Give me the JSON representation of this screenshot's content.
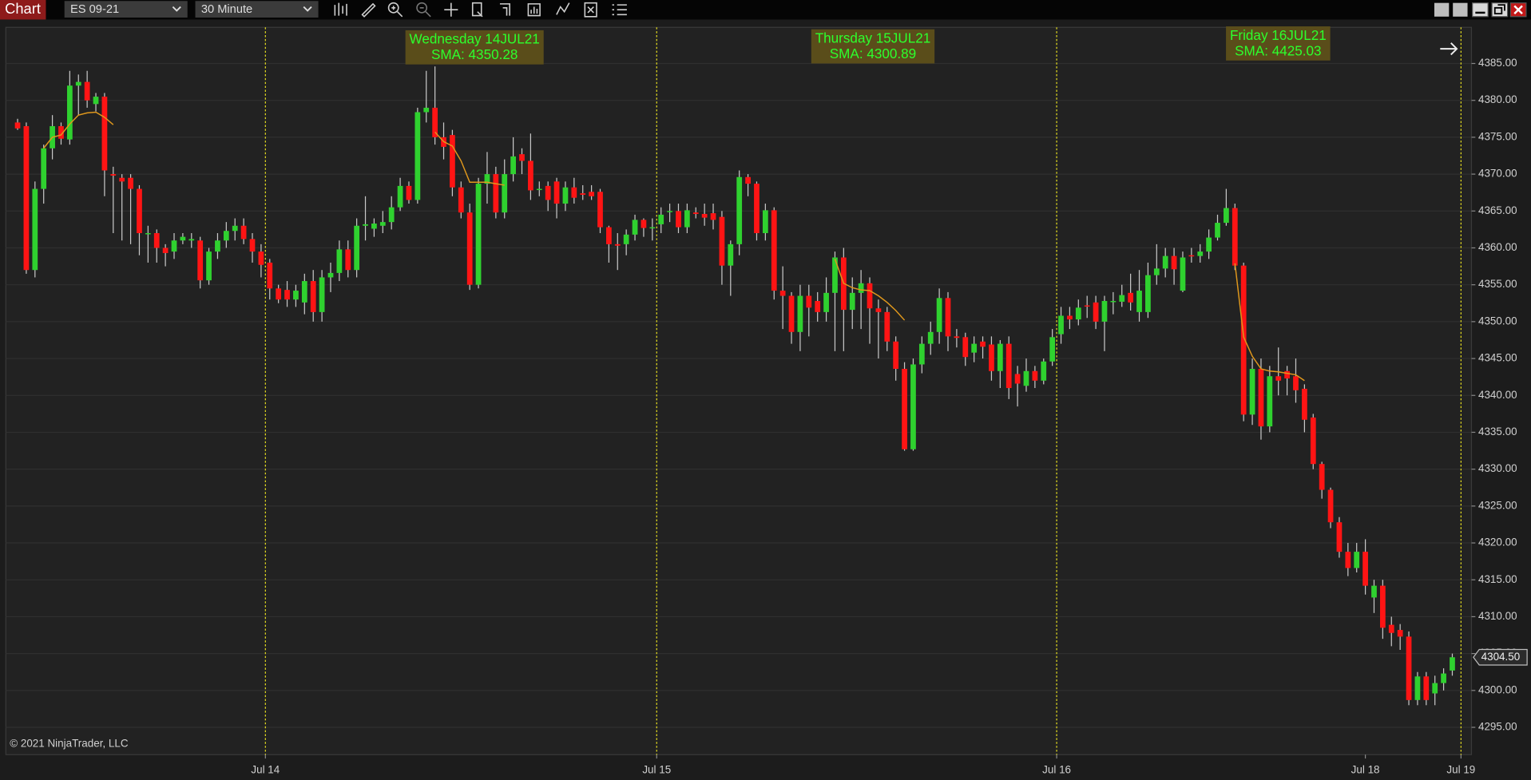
{
  "toolbar": {
    "tab": "Chart",
    "instrument": "ES 09-21",
    "interval": "30 Minute"
  },
  "chart_data": {
    "type": "candlestick",
    "up_color": "#2fd12f",
    "down_color": "#ff1414",
    "wick_color": "#c8c8c8",
    "grid": true,
    "candles": [
      [
        4377,
        4377.5,
        4376,
        4376.2
      ],
      [
        4376.5,
        4377,
        4356.5,
        4357
      ],
      [
        4357,
        4369,
        4356,
        4368
      ],
      [
        4368,
        4374,
        4366,
        4373.5
      ],
      [
        4373.5,
        4378,
        4372,
        4376.5
      ],
      [
        4376.5,
        4377,
        4374,
        4374.8
      ],
      [
        4374.7,
        4384,
        4374,
        4382
      ],
      [
        4382,
        4383.5,
        4378,
        4382.5
      ],
      [
        4382.5,
        4384,
        4379,
        4380
      ],
      [
        4379.5,
        4381,
        4378.5,
        4380.5
      ],
      [
        4380.5,
        4381,
        4367,
        4370.5
      ],
      [
        4370,
        4371,
        4362,
        4369.8
      ],
      [
        4369.5,
        4370,
        4361,
        4369
      ],
      [
        4369.5,
        4370,
        4360.5,
        4368
      ],
      [
        4368,
        4368.5,
        4359,
        4362
      ],
      [
        4362,
        4363,
        4358,
        4362
      ],
      [
        4362,
        4362.5,
        4358,
        4360
      ],
      [
        4360,
        4360.5,
        4357.5,
        4359.3
      ],
      [
        4359.5,
        4362,
        4358.5,
        4361
      ],
      [
        4361,
        4362,
        4360.5,
        4361.5
      ],
      [
        4361,
        4362,
        4360,
        4361.2
      ],
      [
        4361,
        4361.5,
        4354.5,
        4355.6
      ],
      [
        4355.6,
        4360,
        4355,
        4359.5
      ],
      [
        4359.5,
        4362,
        4358.5,
        4361
      ],
      [
        4361,
        4363.5,
        4360,
        4362.3
      ],
      [
        4362.3,
        4364,
        4361,
        4363
      ],
      [
        4363,
        4364,
        4360.5,
        4361.2
      ],
      [
        4361.2,
        4362,
        4358,
        4359.5
      ],
      [
        4359.5,
        4360.5,
        4356,
        4357.7
      ],
      [
        4358,
        4358.5,
        4353,
        4354.5
      ],
      [
        4354.5,
        4355,
        4352.5,
        4353
      ],
      [
        4354.3,
        4355.5,
        4352,
        4353
      ],
      [
        4353,
        4355,
        4352,
        4354.2
      ],
      [
        4352.6,
        4356.5,
        4351,
        4355.5
      ],
      [
        4355.5,
        4357,
        4350,
        4351.3
      ],
      [
        4351.3,
        4357,
        4350,
        4356
      ],
      [
        4356,
        4358,
        4354,
        4356.6
      ],
      [
        4356.6,
        4361,
        4355.5,
        4359.8
      ],
      [
        4359.8,
        4361,
        4356,
        4357
      ],
      [
        4357,
        4364,
        4356,
        4363
      ],
      [
        4363,
        4367,
        4361,
        4363.2
      ],
      [
        4362.6,
        4364,
        4361.5,
        4363.3
      ],
      [
        4363,
        4365,
        4362,
        4363.5
      ],
      [
        4363.5,
        4367,
        4362.5,
        4365.5
      ],
      [
        4365.5,
        4369.5,
        4365,
        4368.4
      ],
      [
        4368.4,
        4369,
        4366,
        4366.5
      ],
      [
        4366.5,
        4379,
        4366,
        4378.4
      ],
      [
        4378.4,
        4384,
        4377,
        4379
      ],
      [
        4379,
        4384.6,
        4374,
        4375
      ],
      [
        4375,
        4377,
        4372,
        4373.7
      ],
      [
        4375.3,
        4376,
        4367,
        4368.2
      ],
      [
        4368.2,
        4369,
        4364,
        4364.8
      ],
      [
        4364.8,
        4366,
        4354.3,
        4355
      ],
      [
        4355,
        4369.5,
        4354.5,
        4368.7
      ],
      [
        4368.7,
        4373,
        4366,
        4370
      ],
      [
        4370,
        4371,
        4364,
        4364.8
      ],
      [
        4364.8,
        4372,
        4364,
        4370
      ],
      [
        4370,
        4375,
        4369,
        4372.4
      ],
      [
        4372.7,
        4373.5,
        4370,
        4371.8
      ],
      [
        4371.8,
        4375.5,
        4366.5,
        4367.8
      ],
      [
        4368,
        4369,
        4367,
        4368
      ],
      [
        4368.4,
        4369,
        4365,
        4366.5
      ],
      [
        4369,
        4369.5,
        4364,
        4366
      ],
      [
        4366,
        4369,
        4365,
        4368.2
      ],
      [
        4368.2,
        4369.5,
        4366,
        4366.8
      ],
      [
        4367.4,
        4368.5,
        4366.5,
        4367.2
      ],
      [
        4367.6,
        4368.5,
        4366.5,
        4367
      ],
      [
        4367.6,
        4368,
        4362,
        4362.8
      ],
      [
        4362.8,
        4363,
        4358,
        4360.5
      ],
      [
        4360.5,
        4362,
        4357,
        4360.3
      ],
      [
        4360.5,
        4362.5,
        4359,
        4361.8
      ],
      [
        4361.8,
        4364.5,
        4361,
        4363.8
      ],
      [
        4363.8,
        4364,
        4361.5,
        4362.7
      ],
      [
        4362.8,
        4364,
        4361,
        4362.8
      ],
      [
        4363.2,
        4365.5,
        4362,
        4364.5
      ],
      [
        4364.9,
        4366,
        4363.5,
        4365
      ],
      [
        4365,
        4366,
        4362,
        4362.8
      ],
      [
        4362.8,
        4366,
        4362,
        4365.1
      ],
      [
        4364.8,
        4365.5,
        4364,
        4364.6
      ],
      [
        4364.6,
        4366,
        4363,
        4364.1
      ],
      [
        4364.7,
        4366,
        4362.5,
        4363.8
      ],
      [
        4364.2,
        4365,
        4355,
        4357.6
      ],
      [
        4357.6,
        4361,
        4353.5,
        4360.5
      ],
      [
        4360.5,
        4370.5,
        4359,
        4369.6
      ],
      [
        4369.6,
        4370,
        4367,
        4368.7
      ],
      [
        4368.7,
        4369,
        4361,
        4362
      ],
      [
        4362,
        4366,
        4361,
        4365.1
      ],
      [
        4365.1,
        4365.5,
        4353,
        4354.2
      ],
      [
        4354.2,
        4357.5,
        4349,
        4353.5
      ],
      [
        4353.5,
        4354,
        4347,
        4348.6
      ],
      [
        4348.6,
        4355,
        4346,
        4353.5
      ],
      [
        4353.5,
        4355,
        4348,
        4351.9
      ],
      [
        4352.8,
        4354,
        4350,
        4351.3
      ],
      [
        4351.3,
        4356,
        4350,
        4353.9
      ],
      [
        4353.9,
        4359.5,
        4346,
        4358.7
      ],
      [
        4358.7,
        4360,
        4346,
        4351.6
      ],
      [
        4351.6,
        4356,
        4349,
        4353.9
      ],
      [
        4353.9,
        4357,
        4349,
        4355.2
      ],
      [
        4355.2,
        4356,
        4347,
        4351.8
      ],
      [
        4351.8,
        4353,
        4345,
        4351.3
      ],
      [
        4351.3,
        4352,
        4346,
        4347.3
      ],
      [
        4347.3,
        4348,
        4342,
        4343.6
      ],
      [
        4343.6,
        4344.5,
        4332.5,
        4332.7
      ],
      [
        4332.7,
        4345,
        4332.5,
        4344.2
      ],
      [
        4344.2,
        4348,
        4343,
        4347
      ],
      [
        4347,
        4350,
        4345.5,
        4348.6
      ],
      [
        4348.6,
        4354.5,
        4347,
        4353.2
      ],
      [
        4353.2,
        4354,
        4346,
        4348
      ],
      [
        4348,
        4349,
        4346.5,
        4347.8
      ],
      [
        4347.9,
        4348.5,
        4344,
        4345.2
      ],
      [
        4345.8,
        4348,
        4344.5,
        4347
      ],
      [
        4347.3,
        4348,
        4345,
        4346.6
      ],
      [
        4346.9,
        4348,
        4342,
        4343.3
      ],
      [
        4343.3,
        4347.5,
        4341,
        4347
      ],
      [
        4347,
        4348,
        4339.5,
        4341
      ],
      [
        4342.9,
        4344,
        4338.5,
        4341.6
      ],
      [
        4341.3,
        4345,
        4340.5,
        4343.3
      ],
      [
        4343.3,
        4344,
        4341,
        4342
      ],
      [
        4342,
        4345,
        4341.5,
        4344.6
      ],
      [
        4344.6,
        4349,
        4344,
        4347.9
      ],
      [
        4348.3,
        4352,
        4347,
        4350.8
      ],
      [
        4350.8,
        4352,
        4349,
        4350.3
      ],
      [
        4350.3,
        4353,
        4349.5,
        4351.9
      ],
      [
        4352.2,
        4353.5,
        4350.5,
        4352.1
      ],
      [
        4352.6,
        4353.5,
        4349,
        4350
      ],
      [
        4350,
        4353.5,
        4346,
        4352.8
      ],
      [
        4352.8,
        4354,
        4351,
        4352.8
      ],
      [
        4352.7,
        4355,
        4352,
        4353.6
      ],
      [
        4353.9,
        4356.5,
        4351.5,
        4352.6
      ],
      [
        4351.3,
        4357,
        4350,
        4354.2
      ],
      [
        4351.3,
        4358,
        4350.5,
        4356.3
      ],
      [
        4356.3,
        4360.5,
        4355,
        4357.2
      ],
      [
        4357.2,
        4360,
        4356,
        4358.9
      ],
      [
        4358.9,
        4360,
        4355,
        4357.1
      ],
      [
        4354.2,
        4359.5,
        4354,
        4358.7
      ],
      [
        4359,
        4360,
        4358,
        4358.9
      ],
      [
        4358.9,
        4360.5,
        4358,
        4359.5
      ],
      [
        4359.5,
        4362.5,
        4358.5,
        4361.4
      ],
      [
        4361.4,
        4364.5,
        4361,
        4363.4
      ],
      [
        4363.4,
        4368,
        4363,
        4365.4
      ],
      [
        4365.4,
        4366,
        4357,
        4357.6
      ],
      [
        4357.6,
        4358,
        4336.5,
        4337.4
      ],
      [
        4337.4,
        4345,
        4336,
        4343.6
      ],
      [
        4343.6,
        4345,
        4334,
        4335.8
      ],
      [
        4335.8,
        4344,
        4335,
        4342.6
      ],
      [
        4342.6,
        4346.5,
        4340,
        4342
      ],
      [
        4343.3,
        4344,
        4340,
        4342.3
      ],
      [
        4342.6,
        4345,
        4339,
        4340.7
      ],
      [
        4340.9,
        4341.5,
        4335,
        4336.7
      ],
      [
        4337,
        4337.5,
        4330,
        4330.7
      ],
      [
        4330.7,
        4331,
        4326,
        4327.2
      ],
      [
        4327.2,
        4327.5,
        4322,
        4322.8
      ],
      [
        4322.8,
        4323.5,
        4318,
        4318.8
      ],
      [
        4318.8,
        4320,
        4315.5,
        4316.6
      ],
      [
        4316.6,
        4320,
        4316,
        4318.8
      ],
      [
        4318.8,
        4320.5,
        4313,
        4314.2
      ],
      [
        4312.6,
        4315,
        4310.5,
        4314.2
      ],
      [
        4314.2,
        4315,
        4307,
        4308.5
      ],
      [
        4308.9,
        4310,
        4306,
        4307.8
      ],
      [
        4308.2,
        4309,
        4305.5,
        4307.3
      ],
      [
        4307.3,
        4308,
        4298,
        4298.7
      ],
      [
        4298.7,
        4302.5,
        4298,
        4301.9
      ],
      [
        4301.9,
        4302.5,
        4298,
        4298.7
      ],
      [
        4299.6,
        4302,
        4298,
        4301
      ],
      [
        4301,
        4303,
        4300,
        4302.3
      ],
      [
        4302.7,
        4305,
        4302,
        4304.5
      ]
    ],
    "sma": {
      "color": "#e0981c",
      "segments": [
        {
          "x": [
            3,
            4,
            5,
            6,
            7,
            8,
            9,
            10,
            11
          ],
          "values": [
            4373.5,
            4375,
            4375.3,
            4376.8,
            4378,
            4378.3,
            4378.4,
            4377.7,
            4376.7
          ]
        },
        {
          "x": [
            48,
            49,
            50,
            51,
            52,
            53,
            54,
            55,
            56
          ],
          "values": [
            4375.7,
            4374.4,
            4373.8,
            4371.8,
            4368.9,
            4368.9,
            4368.9,
            4368.7,
            4368.5
          ]
        },
        {
          "x": [
            94,
            95,
            96,
            97,
            98,
            99,
            100,
            101,
            102
          ],
          "values": [
            4358.5,
            4355.2,
            4354.6,
            4354.3,
            4354.2,
            4353.5,
            4352.6,
            4351.5,
            4350.2
          ]
        },
        {
          "x": [
            140,
            141,
            142,
            143,
            144,
            145,
            146,
            147,
            148
          ],
          "values": [
            4357.9,
            4347.9,
            4345.3,
            4343.6,
            4343.3,
            4343.2,
            4343,
            4342.8,
            4342
          ]
        }
      ]
    },
    "annotations": [
      {
        "day": "Wednesday 14JUL21",
        "sma": "SMA: 4350.28"
      },
      {
        "day": "Thursday 15JUL21",
        "sma": "SMA: 4300.89"
      },
      {
        "day": "Friday 16JUL21",
        "sma": "SMA: 4425.03"
      }
    ],
    "last_price": {
      "value": 4304.5,
      "label": "4304.50"
    },
    "xlim": [
      -1.35,
      167.2
    ],
    "xticks": [
      {
        "value": 28.5,
        "label": "Jul 14"
      },
      {
        "value": 73.5,
        "label": "Jul 15"
      },
      {
        "value": 119.5,
        "label": "Jul 16"
      },
      {
        "value": 155,
        "label": "Jul 18"
      },
      {
        "value": 166,
        "label": "Jul 19"
      }
    ],
    "session_breaks": [
      28.5,
      73.5,
      119.5,
      166
    ],
    "ylim": [
      4291.3,
      4389.9
    ],
    "yticks": [
      {
        "value": 4295,
        "label": "4295.00"
      },
      {
        "value": 4300,
        "label": "4300.00"
      },
      {
        "value": 4305,
        "label": "4305.00"
      },
      {
        "value": 4310,
        "label": "4310.00"
      },
      {
        "value": 4315,
        "label": "4315.00"
      },
      {
        "value": 4320,
        "label": "4320.00"
      },
      {
        "value": 4325,
        "label": "4325.00"
      },
      {
        "value": 4330,
        "label": "4330.00"
      },
      {
        "value": 4335,
        "label": "4335.00"
      },
      {
        "value": 4340,
        "label": "4340.00"
      },
      {
        "value": 4345,
        "label": "4345.00"
      },
      {
        "value": 4350,
        "label": "4350.00"
      },
      {
        "value": 4355,
        "label": "4355.00"
      },
      {
        "value": 4360,
        "label": "4360.00"
      },
      {
        "value": 4365,
        "label": "4365.00"
      },
      {
        "value": 4370,
        "label": "4370.00"
      },
      {
        "value": 4375,
        "label": "4375.00"
      },
      {
        "value": 4380,
        "label": "4380.00"
      },
      {
        "value": 4385,
        "label": "4385.00"
      }
    ],
    "copyright": "© 2021 NinjaTrader, LLC"
  }
}
